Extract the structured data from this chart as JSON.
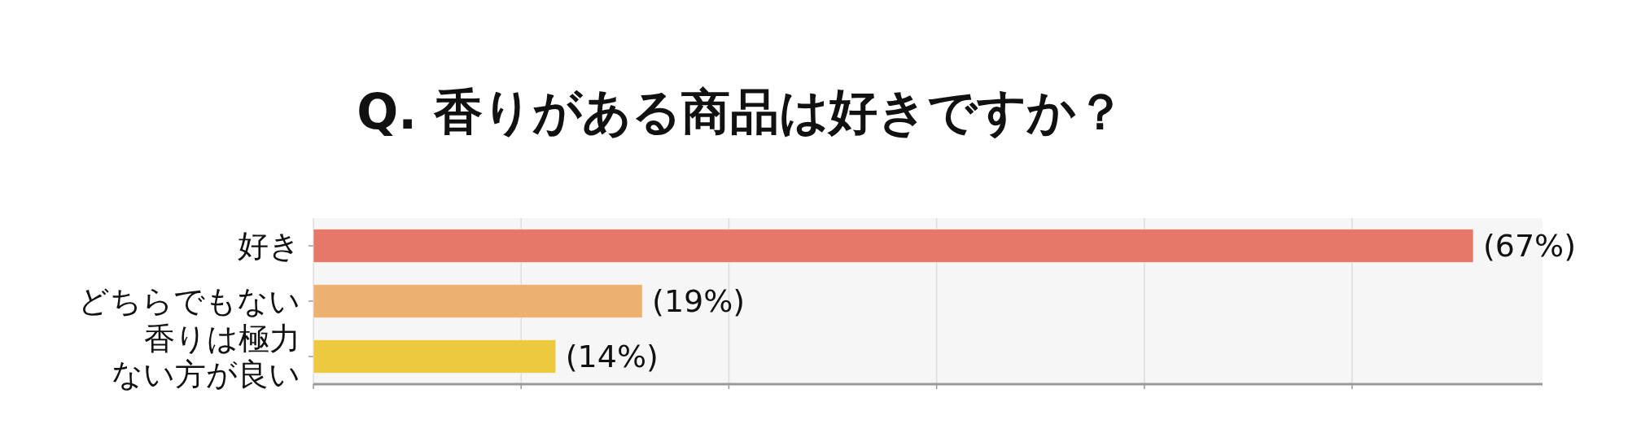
{
  "chart_data": {
    "type": "bar",
    "orientation": "horizontal",
    "title": "Q. 香りがある商品は好きですか？",
    "categories": [
      "好き",
      "どちらでもない",
      "香りは極力ない方が良い"
    ],
    "values": [
      67,
      19,
      14
    ],
    "colors": [
      "#e57868",
      "#ecb06f",
      "#ecc93e"
    ],
    "value_labels": [
      "(67%)",
      "(19%)",
      "(14%)"
    ],
    "xlim": [
      0,
      71
    ],
    "xticks": [
      {
        "value": 0,
        "label": null
      },
      {
        "value": 12,
        "label": null
      },
      {
        "value": 24,
        "label": null
      },
      {
        "value": 36,
        "label": null
      },
      {
        "value": 48,
        "label": null
      },
      {
        "value": 60,
        "label": null
      }
    ],
    "tick_labels": "y",
    "grid": "x"
  }
}
